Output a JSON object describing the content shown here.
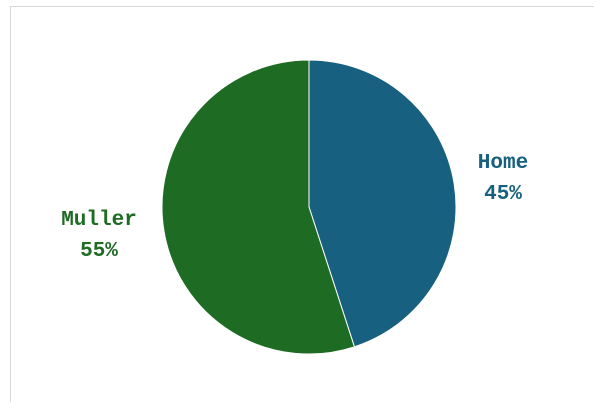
{
  "chart_data": {
    "type": "pie",
    "title": "",
    "slices": [
      {
        "label": "Home",
        "value": 45,
        "value_label": "45%",
        "color": "#17607f"
      },
      {
        "label": "Muller",
        "value": 55,
        "value_label": "55%",
        "color": "#1e6b24"
      }
    ],
    "start_angle": "12 o'clock",
    "direction": "clockwise",
    "legend": "none",
    "label_placement": "outside"
  }
}
